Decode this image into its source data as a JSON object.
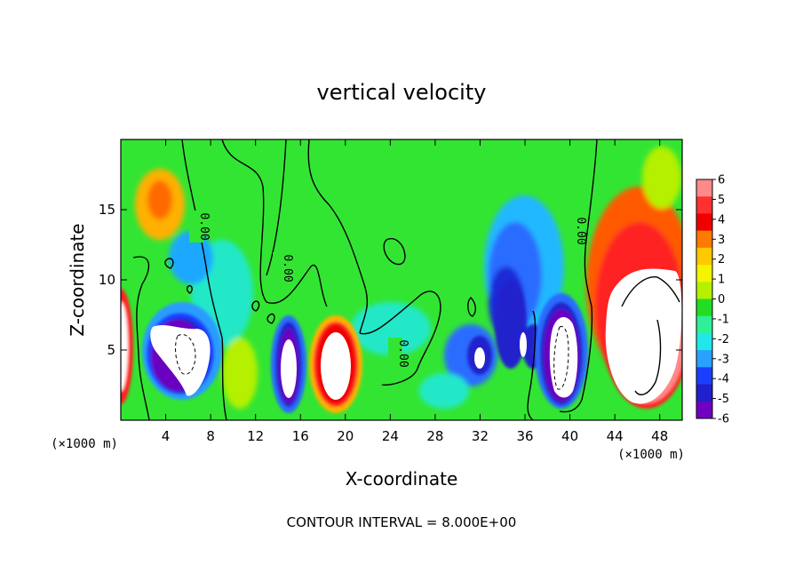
{
  "chart_data": {
    "type": "heatmap",
    "title": "vertical velocity",
    "xlabel": "X-coordinate",
    "ylabel": "Z-coordinate",
    "x_unit": "(×1000 m)",
    "y_unit": "(×1000 m)",
    "xlim": [
      0,
      50
    ],
    "ylim": [
      0,
      20
    ],
    "x_ticks": [
      4,
      8,
      12,
      16,
      20,
      24,
      28,
      32,
      36,
      40,
      44,
      48
    ],
    "y_ticks": [
      5,
      10,
      15
    ],
    "colorbar": {
      "min": -6,
      "max": 6,
      "labels": [
        "6",
        "5",
        "4",
        "3",
        "2",
        "1",
        "0",
        "-1",
        "-2",
        "-3",
        "-4",
        "-5",
        "-6"
      ],
      "colors": [
        "#ff8a8a",
        "#ff3030",
        "#ee0000",
        "#ff7a00",
        "#ffc800",
        "#f4f400",
        "#b4f000",
        "#22dd22",
        "#2ef096",
        "#20e8e8",
        "#2aa0ff",
        "#1a3fff",
        "#2020cc",
        "#7000c0"
      ]
    },
    "contour_labels": [
      "0.00",
      "0.00",
      "0.00",
      "0.00"
    ],
    "note": "CONTOUR INTERVAL = 8.000E+00"
  }
}
